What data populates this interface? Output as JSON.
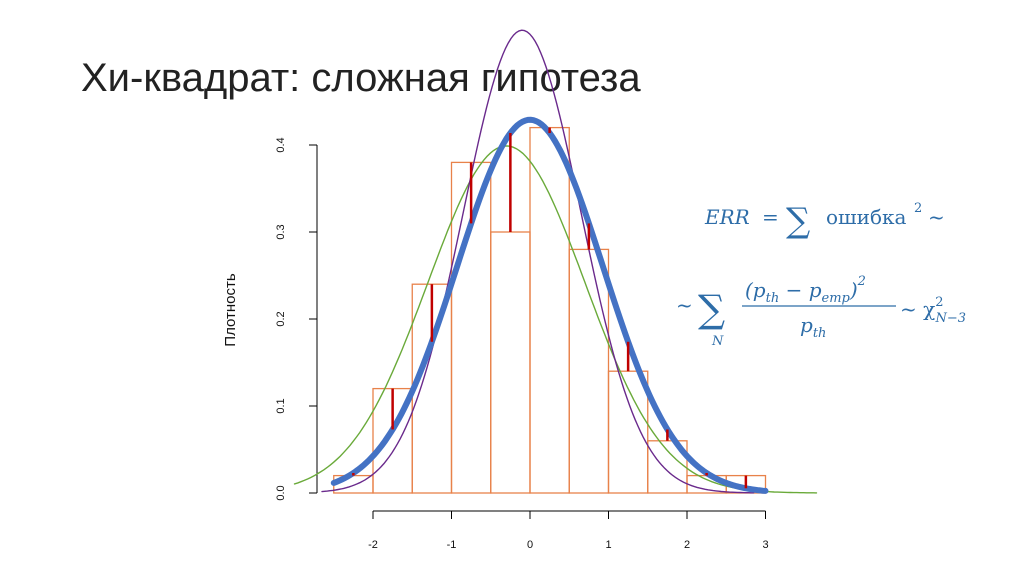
{
  "slide": {
    "title": "Хи-квадрат: сложная гипотеза"
  },
  "chart_data": {
    "type": "bar",
    "ylabel": "Плотность",
    "xlabel": "",
    "xlim": [
      -2.5,
      3.0
    ],
    "ylim": [
      0,
      0.42
    ],
    "x_ticks": [
      -2,
      -1,
      0,
      1,
      2,
      3
    ],
    "y_ticks": [
      0.0,
      0.1,
      0.2,
      0.3,
      0.4
    ],
    "histogram": {
      "bin_edges": [
        -2.5,
        -2.0,
        -1.5,
        -1.0,
        -0.5,
        0.0,
        0.5,
        1.0,
        1.5,
        2.0,
        2.5,
        3.0
      ],
      "densities": [
        0.02,
        0.12,
        0.24,
        0.38,
        0.3,
        0.42,
        0.28,
        0.14,
        0.06,
        0.02,
        0.02
      ],
      "color": "#e8824a"
    },
    "residual_color": "#c00000",
    "curves": [
      {
        "label": "green",
        "mean": -0.3,
        "sd": 1.0,
        "x_range": [
          -3.0,
          3.65
        ],
        "color": "#6aaa3a",
        "width": 1.4
      },
      {
        "label": "purple",
        "mean": -0.1,
        "sd": 0.75,
        "x_range": [
          -2.65,
          2.85
        ],
        "color": "#6a2a8c",
        "width": 1.4
      },
      {
        "label": "blue",
        "mean": 0.0,
        "sd": 0.93,
        "x_range": [
          -2.5,
          3.0
        ],
        "color": "#4472c4",
        "width": 6
      }
    ],
    "annotations": {
      "line1": {
        "lhs": "ERR",
        "eq": "=",
        "sum": "∑",
        "word": "ошибка",
        "exp": "2",
        "tilde": "~"
      },
      "line2": {
        "tilde": "~",
        "sum": "∑",
        "sum_sub": "N",
        "numerator": "(p",
        "num_th": "th",
        "minus": " − p",
        "num_emp": "emp",
        "num_close": ")",
        "num_exp": "2",
        "denominator": "p",
        "den_th": "th",
        "chi": "~ χ",
        "chi_sup": "2",
        "chi_sub": "N−3"
      }
    }
  }
}
